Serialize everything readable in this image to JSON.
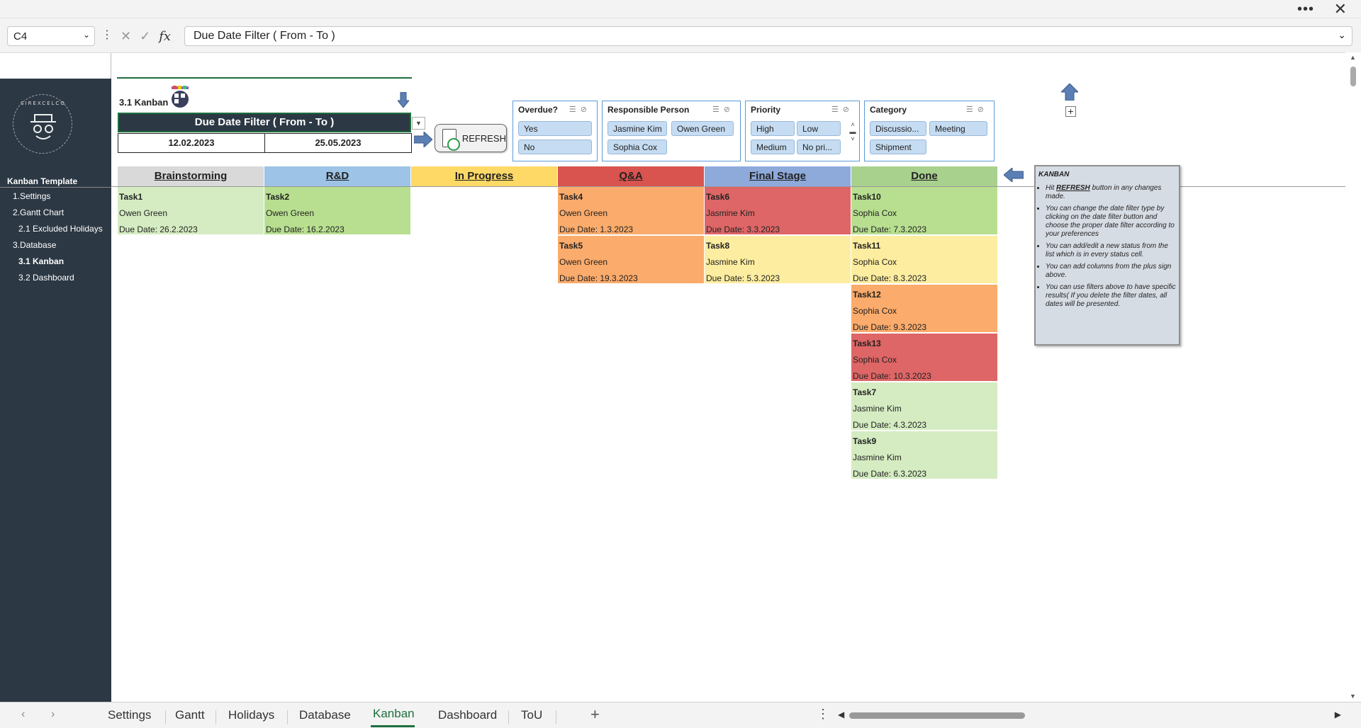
{
  "namebox": {
    "value": "C4"
  },
  "formula": {
    "value": "Due Date Filter ( From - To )"
  },
  "sidebar": {
    "logo_text": "SIREXCELCO",
    "title": "Kanban Template",
    "items": [
      {
        "label": "1.Settings"
      },
      {
        "label": "2.Gantt Chart"
      },
      {
        "label": "2.1 Excluded Holidays"
      },
      {
        "label": "3.Database"
      },
      {
        "label": "3.1 Kanban"
      },
      {
        "label": "3.2 Dashboard"
      }
    ]
  },
  "header": {
    "kanban_label": "3.1 Kanban",
    "date_filter_title": "Due Date Filter ( From - To )",
    "date_from": "12.02.2023",
    "date_to": "25.05.2023",
    "refresh_label": "REFRESH"
  },
  "slicers": {
    "overdue": {
      "title": "Overdue?",
      "items": [
        "Yes",
        "No"
      ]
    },
    "person": {
      "title": "Responsible Person",
      "items": [
        "Jasmine Kim",
        "Owen Green",
        "Sophia Cox"
      ]
    },
    "priority": {
      "title": "Priority",
      "items": [
        "High",
        "Low",
        "Medium",
        "No pri..."
      ]
    },
    "category": {
      "title": "Category",
      "items": [
        "Discussio...",
        "Meeting",
        "Shipment"
      ]
    }
  },
  "board": {
    "columns": [
      {
        "name": "Brainstorming",
        "color": "#d9d9d9"
      },
      {
        "name": "R&D",
        "color": "#9dc3e6"
      },
      {
        "name": "In Progress",
        "color": "#ffd966"
      },
      {
        "name": "Q&A",
        "color": "#d9534f"
      },
      {
        "name": "Final Stage",
        "color": "#8eaadb"
      },
      {
        "name": "Done",
        "color": "#a9d18e"
      }
    ],
    "cards": {
      "brainstorming": [
        {
          "task": "Task1",
          "person": "Owen Green",
          "due": "Due Date: 26.2.2023",
          "color": "#d5ecc2"
        }
      ],
      "rnd": [
        {
          "task": "Task2",
          "person": "Owen Green",
          "due": "Due Date: 16.2.2023",
          "color": "#b8df90"
        }
      ],
      "qa": [
        {
          "task": "Task4",
          "person": "Owen Green",
          "due": "Due Date: 1.3.2023",
          "color": "#fbab6b"
        },
        {
          "task": "Task5",
          "person": "Owen Green",
          "due": "Due Date: 19.3.2023",
          "color": "#fbab6b"
        }
      ],
      "final": [
        {
          "task": "Task6",
          "person": "Jasmine Kim",
          "due": "Due Date: 3.3.2023",
          "color": "#de6666"
        },
        {
          "task": "Task8",
          "person": "Jasmine Kim",
          "due": "Due Date: 5.3.2023",
          "color": "#fdeda0"
        }
      ],
      "done": [
        {
          "task": "Task10",
          "person": "Sophia Cox",
          "due": "Due Date: 7.3.2023",
          "color": "#b8df90"
        },
        {
          "task": "Task11",
          "person": "Sophia Cox",
          "due": "Due Date: 8.3.2023",
          "color": "#fdeda0"
        },
        {
          "task": "Task12",
          "person": "Sophia Cox",
          "due": "Due Date: 9.3.2023",
          "color": "#fbab6b"
        },
        {
          "task": "Task13",
          "person": "Sophia Cox",
          "due": "Due Date: 10.3.2023",
          "color": "#de6666"
        },
        {
          "task": "Task7",
          "person": "Jasmine Kim",
          "due": "Due Date: 4.3.2023",
          "color": "#d5ecc2"
        },
        {
          "task": "Task9",
          "person": "Jasmine Kim",
          "due": "Due Date: 6.3.2023",
          "color": "#d5ecc2"
        }
      ]
    }
  },
  "note": {
    "title": "KANBAN",
    "bullets": [
      {
        "pre": "Hit ",
        "bold": "REFRESH",
        "post": " button in any changes made."
      },
      {
        "pre": "You can change the date filter type by clicking on the date filter button and choose the proper date filter according to your preferences",
        "bold": "",
        "post": ""
      },
      {
        "pre": "You can add/edit a new status from the list which is in every status cell.",
        "bold": "",
        "post": ""
      },
      {
        "pre": "You can add columns from the plus sign above.",
        "bold": "",
        "post": ""
      },
      {
        "pre": "You can use filters above to have specific results( If you delete the filter dates, all dates will be presented.",
        "bold": "",
        "post": ""
      }
    ]
  },
  "tabs": [
    "Settings",
    "Gantt",
    "Holidays",
    "Database",
    "Kanban",
    "Dashboard",
    "ToU"
  ],
  "active_tab": "Kanban",
  "colors": {
    "sidebar": "#2c3844",
    "excel_green": "#1e6f3e",
    "slicer_item": "#c5dcf2",
    "arrow_blue": "#5b7fb5"
  }
}
